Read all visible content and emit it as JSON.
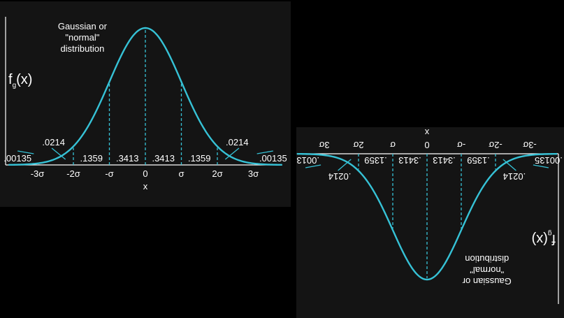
{
  "colors": {
    "curve": "#36c2d6",
    "dashed_line": "#36c2d6",
    "text": "#ffffff",
    "axis": "#ffffff",
    "panel_background": "#141414",
    "page_background": "#000000"
  },
  "chart_data": [
    {
      "type": "line",
      "orientation": "upright",
      "title": "Gaussian or \"normal\" distribution",
      "title_lines": [
        "Gaussian or",
        "\"normal\"",
        "distribution"
      ],
      "ylabel": "f",
      "ylabel_subscript": "g",
      "ylabel_suffix": "(x)",
      "xlabel": "x",
      "x_ticks": [
        "-3σ",
        "-2σ",
        "-σ",
        "0",
        "σ",
        "2σ",
        "3σ"
      ],
      "x_tick_values": [
        -3,
        -2,
        -1,
        0,
        1,
        2,
        3
      ],
      "xlim": [
        -3.8,
        3.8
      ],
      "dashed_lines_at": [
        -3,
        -2,
        -1,
        0,
        1,
        2,
        3
      ],
      "curve": {
        "function": "standard normal density",
        "mean": 0,
        "sd": 1
      },
      "region_probabilities": [
        {
          "from": "-∞",
          "to": -3,
          "value": ".00135"
        },
        {
          "from": -3,
          "to": -2,
          "value": ".0214"
        },
        {
          "from": -2,
          "to": -1,
          "value": ".1359"
        },
        {
          "from": -1,
          "to": 0,
          "value": ".3413"
        },
        {
          "from": 0,
          "to": 1,
          "value": ".3413"
        },
        {
          "from": 1,
          "to": 2,
          "value": ".1359"
        },
        {
          "from": 2,
          "to": 3,
          "value": ".0214"
        },
        {
          "from": 3,
          "to": "∞",
          "value": ".00135"
        }
      ]
    },
    {
      "type": "line",
      "orientation": "rotated 180°",
      "title": "Gaussian or \"normal\" distribution",
      "title_lines": [
        "Gaussian or",
        "\"normal\"",
        "distribution"
      ],
      "ylabel": "f",
      "ylabel_subscript": "g",
      "ylabel_suffix": "(x)",
      "xlabel": "x",
      "x_ticks": [
        "-3σ",
        "-2σ",
        "-σ",
        "0",
        "σ",
        "2σ",
        "3σ"
      ],
      "x_tick_values": [
        -3,
        -2,
        -1,
        0,
        1,
        2,
        3
      ],
      "xlim": [
        -3.8,
        3.8
      ],
      "dashed_lines_at": [
        -3,
        -2,
        -1,
        0,
        1,
        2,
        3
      ],
      "curve": {
        "function": "standard normal density",
        "mean": 0,
        "sd": 1
      },
      "region_probabilities": [
        {
          "from": "-∞",
          "to": -3,
          "value": ".00135"
        },
        {
          "from": -3,
          "to": -2,
          "value": ".0214"
        },
        {
          "from": -2,
          "to": -1,
          "value": ".1359"
        },
        {
          "from": -1,
          "to": 0,
          "value": ".3413"
        },
        {
          "from": 0,
          "to": 1,
          "value": ".3413"
        },
        {
          "from": 1,
          "to": 2,
          "value": ".1359"
        },
        {
          "from": 2,
          "to": 3,
          "value": ".0214"
        },
        {
          "from": 3,
          "to": "∞",
          "value": ".00135"
        }
      ]
    }
  ]
}
